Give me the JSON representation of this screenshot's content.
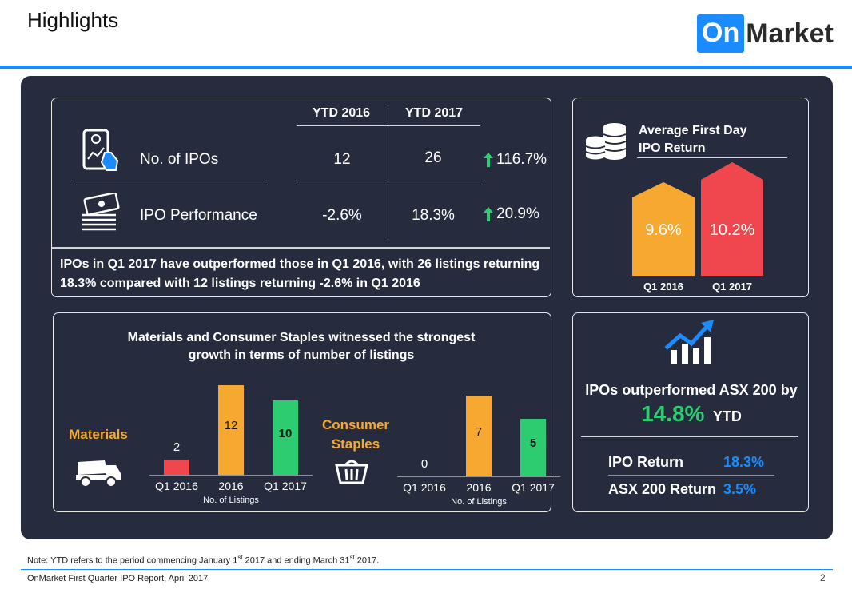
{
  "header": {
    "title": "Highlights",
    "logo_on": "On",
    "logo_market": "Market"
  },
  "ipo_table": {
    "col_2016": "YTD 2016",
    "col_2017": "YTD 2017",
    "rows": [
      {
        "label": "No. of IPOs",
        "v2016": "12",
        "v2017": "26",
        "change": "116.7%"
      },
      {
        "label": "IPO Performance",
        "v2016": "-2.6%",
        "v2017": "18.3%",
        "change": "20.9%"
      }
    ],
    "summary": "IPOs in Q1 2017 have outperformed those in Q1 2016, with 26 listings returning 18.3% compared with 12 listings returning -2.6% in Q1 2016"
  },
  "avg_return": {
    "title_line1": "Average First Day",
    "title_line2": "IPO Return",
    "values": [
      {
        "label": "Q1 2016",
        "value": "9.6%"
      },
      {
        "label": "Q1 2017",
        "value": "10.2%"
      }
    ]
  },
  "sectors": {
    "title_line1": "Materials and Consumer Staples witnessed the strongest",
    "title_line2": "growth in terms of number of listings",
    "axis_label": "No. of Listings",
    "groups": [
      {
        "name_line1": "Materials",
        "name_line2": "",
        "categories": [
          "Q1 2016",
          "2016",
          "Q1 2017"
        ],
        "values": [
          "2",
          "12",
          "10"
        ]
      },
      {
        "name_line1": "Consumer",
        "name_line2": "Staples",
        "categories": [
          "Q1 2016",
          "2016",
          "Q1 2017"
        ],
        "values": [
          "0",
          "7",
          "5"
        ]
      }
    ]
  },
  "chart_data": [
    {
      "type": "bar",
      "title": "Materials",
      "categories": [
        "Q1 2016",
        "2016",
        "Q1 2017"
      ],
      "values": [
        2,
        12,
        10
      ],
      "xlabel": "No. of Listings"
    },
    {
      "type": "bar",
      "title": "Consumer Staples",
      "categories": [
        "Q1 2016",
        "2016",
        "Q1 2017"
      ],
      "values": [
        0,
        7,
        5
      ],
      "xlabel": "No. of Listings"
    }
  ],
  "asx": {
    "headline": "IPOs outperformed ASX 200 by",
    "pct": "14.8%",
    "suffix": "YTD",
    "rows": [
      {
        "label": "IPO Return",
        "value": "18.3%"
      },
      {
        "label": "ASX 200 Return",
        "value": "3.5%"
      }
    ]
  },
  "footer": {
    "note": "Note: YTD refers to the period commencing January 1st 2017 and ending March 31st 2017.",
    "note_a": "Note: YTD refers to the period commencing January 1",
    "note_sup1": "st",
    "note_b": " 2017 and ending March 31",
    "note_sup2": "st",
    "note_c": " 2017.",
    "source": "OnMarket First Quarter IPO Report, April 2017",
    "page": "2"
  },
  "colors": {
    "accent": "#1a8cff",
    "panel_bg": "#262c3e",
    "orange": "#f7a830",
    "red": "#f0474f",
    "green": "#2ecc71"
  }
}
